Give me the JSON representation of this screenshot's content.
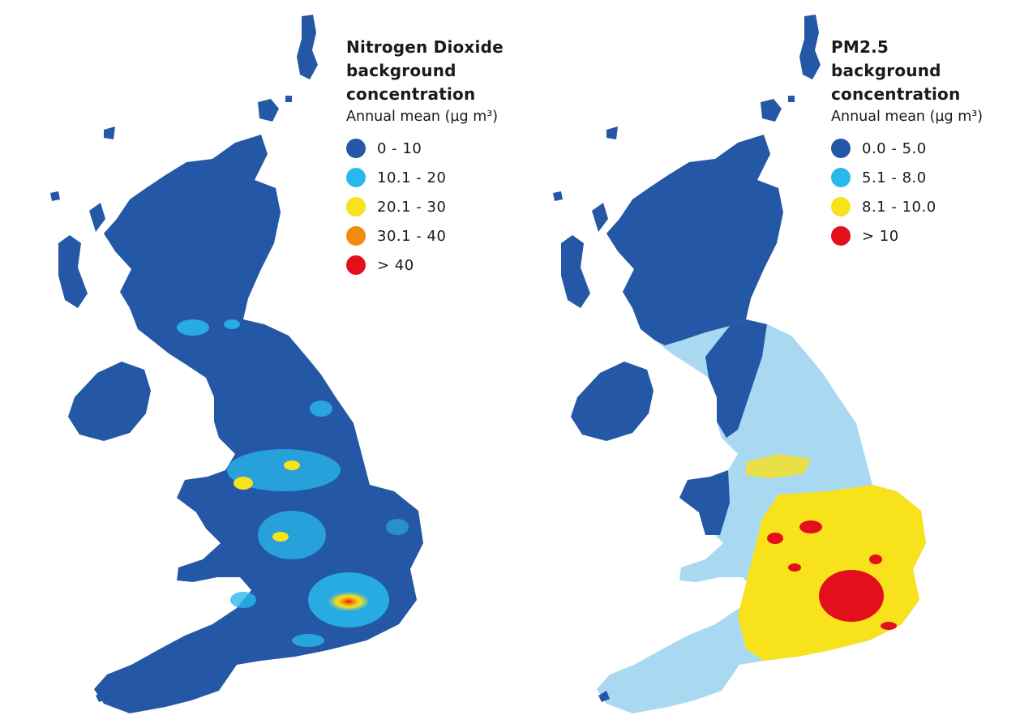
{
  "maps": [
    {
      "title_lines": [
        "Nitrogen Dioxide",
        "background",
        "concentration"
      ],
      "subtitle": "Annual mean (µg m³)",
      "legend": [
        {
          "label": "0 - 10",
          "color": "#2457a5"
        },
        {
          "label": "10.1 - 20",
          "color": "#29b8ec"
        },
        {
          "label": "20.1 - 30",
          "color": "#f7e21b"
        },
        {
          "label": "30.1 - 40",
          "color": "#f08c0c"
        },
        {
          "label": "> 40",
          "color": "#e30f1b"
        }
      ]
    },
    {
      "title_lines": [
        "PM2.5",
        "background",
        "concentration"
      ],
      "subtitle": "Annual mean (µg m³)",
      "legend": [
        {
          "label": "0.0 - 5.0",
          "color": "#2457a5"
        },
        {
          "label": "5.1 - 8.0",
          "color": "#29b8ec"
        },
        {
          "label": "8.1 - 10.0",
          "color": "#f7e21b"
        },
        {
          "label": "> 10",
          "color": "#e30f1b"
        }
      ]
    }
  ]
}
